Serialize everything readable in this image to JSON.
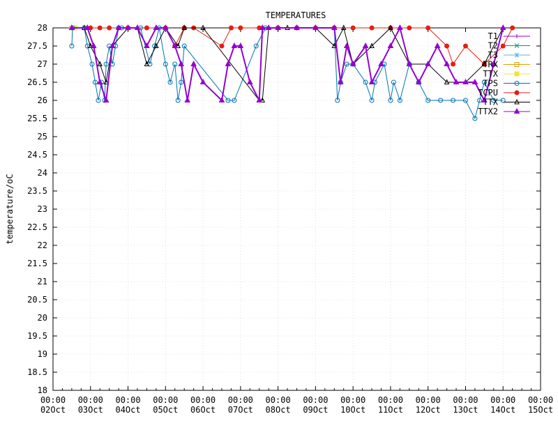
{
  "chart_data": {
    "type": "line",
    "title": "TEMPERATURES",
    "xlabel": "",
    "ylabel": "temperature/oC",
    "ylim": [
      18,
      28
    ],
    "y_ticks": [
      "18",
      "18.5",
      "19",
      "19.5",
      "20",
      "20.5",
      "21",
      "21.5",
      "22",
      "22.5",
      "23",
      "23.5",
      "24",
      "24.5",
      "25",
      "25.5",
      "26",
      "26.5",
      "27",
      "27.5",
      "28"
    ],
    "xlim": [
      "2024-10-02 00:00",
      "2024-10-15 00:00"
    ],
    "x_ticks": [
      {
        "line1": "00:00",
        "line2": "02Oct"
      },
      {
        "line1": "00:00",
        "line2": "03Oct"
      },
      {
        "line1": "00:00",
        "line2": "04Oct"
      },
      {
        "line1": "00:00",
        "line2": "05Oct"
      },
      {
        "line1": "00:00",
        "line2": "06Oct"
      },
      {
        "line1": "00:00",
        "line2": "07Oct"
      },
      {
        "line1": "00:00",
        "line2": "08Oct"
      },
      {
        "line1": "00:00",
        "line2": "09Oct"
      },
      {
        "line1": "00:00",
        "line2": "10Oct"
      },
      {
        "line1": "00:00",
        "line2": "11Oct"
      },
      {
        "line1": "00:00",
        "line2": "12Oct"
      },
      {
        "line1": "00:00",
        "line2": "13Oct"
      },
      {
        "line1": "00:00",
        "line2": "14Oct"
      },
      {
        "line1": "00:00",
        "line2": "15Oct"
      }
    ],
    "grid": true,
    "legend_position": "top-right",
    "series": [
      {
        "name": "T1",
        "color": "#9400d3",
        "marker": "plus",
        "x": [
          "2024-10-02 12:00",
          "2024-10-02 14:00"
        ],
        "y": [
          28,
          28
        ]
      },
      {
        "name": "T2",
        "color": "#009e73",
        "marker": "cross",
        "x": [
          "2024-10-02 12:00",
          "2024-10-02 14:00"
        ],
        "y": [
          28,
          28
        ]
      },
      {
        "name": "T3",
        "color": "#56b4e9",
        "marker": "star",
        "x": [
          "2024-10-02 12:00",
          "2024-10-02 14:00"
        ],
        "y": [
          28,
          28
        ]
      },
      {
        "name": "TRX",
        "color": "#e69f00",
        "marker": "square",
        "x": [
          "2024-10-02 12:00",
          "2024-10-02 14:00"
        ],
        "y": [
          28,
          28
        ]
      },
      {
        "name": "TTX",
        "color": "#f0e442",
        "marker": "filled-square",
        "x": [
          "2024-10-02 12:00",
          "2024-10-02 14:00"
        ],
        "y": [
          28,
          28
        ]
      },
      {
        "name": "TPS",
        "color": "#0072b2",
        "marker": "circle",
        "x": [
          "2024-10-02 12:00",
          "2024-10-02 12:30",
          "2024-10-02 20:00",
          "2024-10-02 22:00",
          "2024-10-03 01:00",
          "2024-10-03 03:00",
          "2024-10-03 05:00",
          "2024-10-03 07:00",
          "2024-10-03 09:00",
          "2024-10-03 10:00",
          "2024-10-03 12:00",
          "2024-10-03 14:00",
          "2024-10-03 16:00",
          "2024-10-03 18:00",
          "2024-10-03 20:00",
          "2024-10-04 00:00",
          "2024-10-04 08:00",
          "2024-10-04 14:00",
          "2024-10-04 17:00",
          "2024-10-04 20:00",
          "2024-10-05 00:00",
          "2024-10-05 03:00",
          "2024-10-05 06:00",
          "2024-10-05 08:00",
          "2024-10-05 10:00",
          "2024-10-05 12:00",
          "2024-10-06 16:00",
          "2024-10-06 20:00",
          "2024-10-07 10:00",
          "2024-10-07 16:00",
          "2024-10-08 00:00",
          "2024-10-08 12:00",
          "2024-10-09 12:00",
          "2024-10-09 14:00",
          "2024-10-09 16:00",
          "2024-10-09 20:00",
          "2024-10-10 00:00",
          "2024-10-10 08:00",
          "2024-10-10 12:00",
          "2024-10-10 14:00",
          "2024-10-10 20:00",
          "2024-10-11 00:00",
          "2024-10-11 02:00",
          "2024-10-11 06:00",
          "2024-10-11 12:00",
          "2024-10-11 18:00",
          "2024-10-12 00:00",
          "2024-10-12 08:00",
          "2024-10-12 16:00",
          "2024-10-13 00:00",
          "2024-10-13 06:00",
          "2024-10-13 09:00",
          "2024-10-13 12:00",
          "2024-10-13 18:00",
          "2024-10-14 00:00"
        ],
        "y": [
          27.5,
          28,
          28,
          27.5,
          27,
          26.5,
          26,
          26.5,
          26,
          27,
          27.5,
          27,
          27.5,
          28,
          28,
          28,
          28,
          27,
          27.5,
          28,
          27,
          26.5,
          27,
          26,
          26.5,
          27.5,
          26,
          26,
          27.5,
          28,
          28,
          28,
          28,
          26,
          26.5,
          27,
          27,
          26.5,
          26,
          26.5,
          27,
          26,
          26.5,
          26,
          27,
          26.5,
          26,
          26,
          26,
          26,
          25.5,
          26,
          26.5,
          26,
          26
        ]
      },
      {
        "name": "TCPU",
        "color": "#e51e10",
        "marker": "filled-circle",
        "x": [
          "2024-10-03 00:00",
          "2024-10-03 06:00",
          "2024-10-03 12:00",
          "2024-10-04 00:00",
          "2024-10-04 12:00",
          "2024-10-05 00:00",
          "2024-10-05 06:00",
          "2024-10-05 12:00",
          "2024-10-05 18:00",
          "2024-10-06 12:00",
          "2024-10-06 18:00",
          "2024-10-07 00:00",
          "2024-10-07 12:00",
          "2024-10-08 00:00",
          "2024-10-08 12:00",
          "2024-10-09 00:00",
          "2024-10-09 12:00",
          "2024-10-10 00:00",
          "2024-10-10 12:00",
          "2024-10-11 00:00",
          "2024-10-11 12:00",
          "2024-10-12 00:00",
          "2024-10-12 12:00",
          "2024-10-12 16:00",
          "2024-10-13 00:00",
          "2024-10-13 12:00",
          "2024-10-14 00:00",
          "2024-10-14 06:00"
        ],
        "y": [
          28,
          28,
          28,
          28,
          28,
          28,
          27.5,
          28,
          28,
          27.5,
          28,
          28,
          28,
          28,
          28,
          28,
          28,
          28,
          28,
          28,
          28,
          28,
          27.5,
          27,
          27.5,
          27,
          27.5,
          28
        ]
      },
      {
        "name": "TTX",
        "color": "#000000",
        "marker": "triangle",
        "x": [
          "2024-10-02 20:00",
          "2024-10-03 00:00",
          "2024-10-03 06:00",
          "2024-10-03 10:00",
          "2024-10-03 14:00",
          "2024-10-04 00:00",
          "2024-10-04 06:00",
          "2024-10-04 12:00",
          "2024-10-04 18:00",
          "2024-10-05 00:00",
          "2024-10-05 08:00",
          "2024-10-05 12:00",
          "2024-10-06 00:00",
          "2024-10-07 12:00",
          "2024-10-07 14:00",
          "2024-10-07 18:00",
          "2024-10-08 06:00",
          "2024-10-09 00:00",
          "2024-10-09 12:00",
          "2024-10-09 18:00",
          "2024-10-10 00:00",
          "2024-10-10 12:00",
          "2024-10-11 00:00",
          "2024-10-11 12:00",
          "2024-10-12 00:00",
          "2024-10-12 12:00",
          "2024-10-13 00:00",
          "2024-10-13 12:00",
          "2024-10-14 00:00"
        ],
        "y": [
          28,
          27.5,
          27,
          26.5,
          27.5,
          28,
          28,
          27,
          27.5,
          28,
          27.5,
          28,
          28,
          26,
          26,
          28,
          28,
          28,
          27.5,
          28,
          27,
          27.5,
          28,
          27,
          27,
          26.5,
          26.5,
          27,
          28
        ]
      },
      {
        "name": "TTX2",
        "color": "#9400d3",
        "marker": "filled-triangle",
        "x": [
          "2024-10-02 12:00",
          "2024-10-02 22:00",
          "2024-10-03 02:00",
          "2024-10-03 06:00",
          "2024-10-03 10:00",
          "2024-10-03 14:00",
          "2024-10-03 18:00",
          "2024-10-04 00:00",
          "2024-10-04 06:00",
          "2024-10-04 12:00",
          "2024-10-04 18:00",
          "2024-10-05 00:00",
          "2024-10-05 06:00",
          "2024-10-05 10:00",
          "2024-10-05 14:00",
          "2024-10-05 18:00",
          "2024-10-06 00:00",
          "2024-10-06 12:00",
          "2024-10-06 16:00",
          "2024-10-06 20:00",
          "2024-10-07 00:00",
          "2024-10-07 06:00",
          "2024-10-07 12:00",
          "2024-10-07 14:00",
          "2024-10-07 18:00",
          "2024-10-08 00:00",
          "2024-10-08 12:00",
          "2024-10-09 00:00",
          "2024-10-09 12:00",
          "2024-10-09 16:00",
          "2024-10-09 20:00",
          "2024-10-10 00:00",
          "2024-10-10 08:00",
          "2024-10-10 12:00",
          "2024-10-10 18:00",
          "2024-10-11 00:00",
          "2024-10-11 06:00",
          "2024-10-11 12:00",
          "2024-10-11 18:00",
          "2024-10-12 00:00",
          "2024-10-12 06:00",
          "2024-10-12 12:00",
          "2024-10-12 18:00",
          "2024-10-13 00:00",
          "2024-10-13 06:00",
          "2024-10-13 12:00",
          "2024-10-13 18:00",
          "2024-10-14 00:00"
        ],
        "y": [
          28,
          28,
          27.5,
          26.5,
          26,
          27.5,
          28,
          28,
          28,
          27.5,
          28,
          28,
          27.5,
          27,
          26,
          27,
          26.5,
          26,
          27,
          27.5,
          27.5,
          26.5,
          26,
          28,
          28,
          28,
          28,
          28,
          28,
          26.5,
          27.5,
          27,
          27.5,
          26.5,
          27,
          27.5,
          28,
          27,
          26.5,
          27,
          27.5,
          27,
          26.5,
          26.5,
          26.5,
          26,
          27,
          28
        ]
      }
    ]
  }
}
